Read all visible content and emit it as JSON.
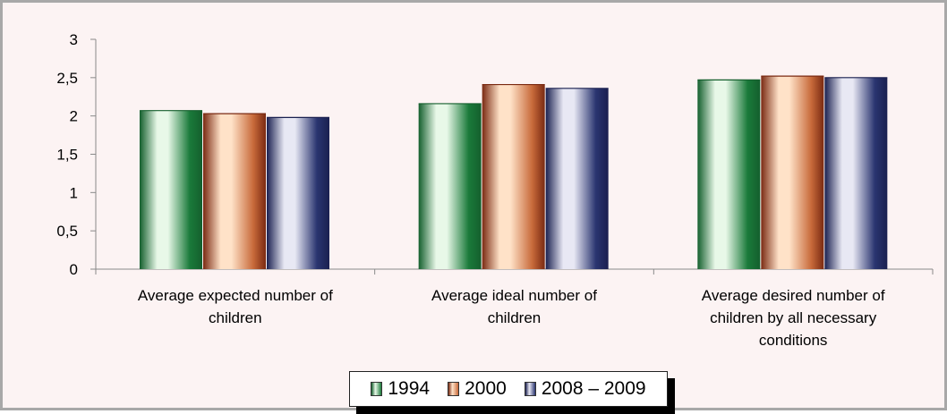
{
  "chart_data": {
    "type": "bar",
    "title": "",
    "xlabel": "",
    "ylabel": "",
    "ylim": [
      0,
      3
    ],
    "yticks": [
      "0",
      "0,5",
      "1",
      "1,5",
      "2",
      "2,5",
      "3"
    ],
    "grid": false,
    "legend_position": "bottom",
    "categories": [
      [
        "Average expected number of",
        "children"
      ],
      [
        "Average ideal number of",
        "children"
      ],
      [
        "Average desired number of",
        "children by all necessary",
        "conditions"
      ]
    ],
    "series": [
      {
        "name": "1994",
        "values": [
          2.07,
          2.16,
          2.47
        ],
        "color": "#1a7a3a",
        "light": "#e8f8e8",
        "dark": "#145f2d"
      },
      {
        "name": "2000",
        "values": [
          2.03,
          2.41,
          2.52
        ],
        "color": "#c86a3a",
        "light": "#ffe2c8",
        "dark": "#7a2a12"
      },
      {
        "name": "2008 – 2009",
        "values": [
          1.98,
          2.36,
          2.5
        ],
        "color": "#2a3570",
        "light": "#e8e8f4",
        "dark": "#1a2050"
      }
    ]
  }
}
